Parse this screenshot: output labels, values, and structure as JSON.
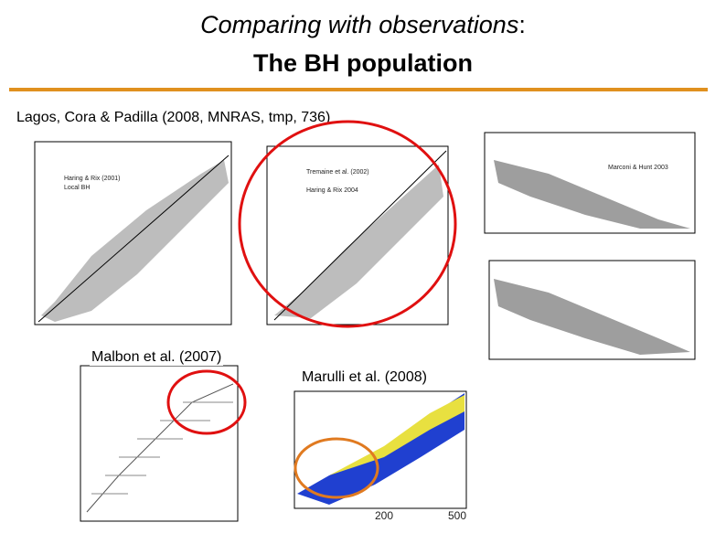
{
  "header": {
    "title_italic": "Comparing with observations",
    "title_suffix": ":",
    "title_line2": "The BH population"
  },
  "citation": "Lagos, Cora & Padilla (2008, MNRAS, tmp, 736)",
  "panels": {
    "top_right_legend": "Marconi & Hunt 2003",
    "middle_legend": [
      "Tremaine et al. (2002)",
      "Haring & Rix 2004"
    ],
    "left_legend": [
      "Haring & Rix (2001)",
      "Local BH"
    ]
  },
  "labels": {
    "malbon": "Malbon et al. (2007)",
    "marulli": "Marulli et al. (2008)"
  },
  "marulli_axis": {
    "xticks": [
      "200",
      "500"
    ]
  }
}
